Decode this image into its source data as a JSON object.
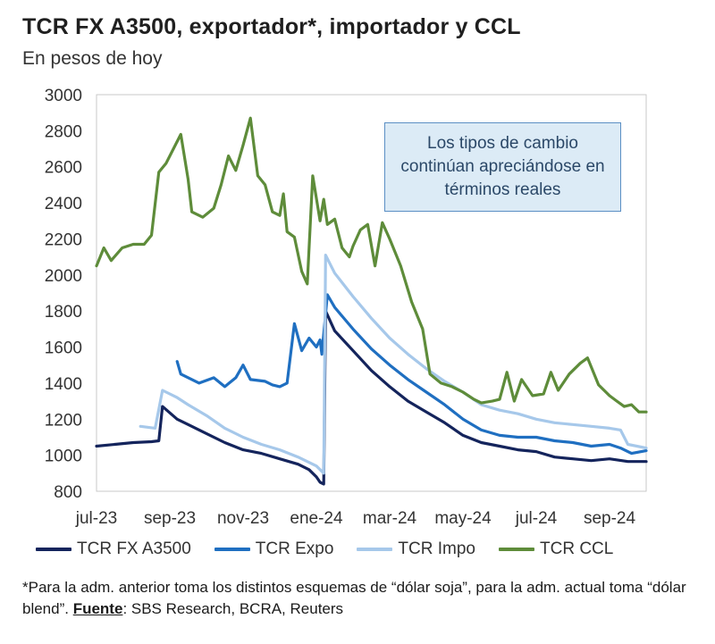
{
  "chart_data": {
    "type": "line",
    "title": "TCR FX A3500, exportador*, importador y CCL",
    "subtitle": "En pesos de hoy",
    "ylim": [
      800,
      3000
    ],
    "y_ticks": [
      800,
      1000,
      1200,
      1400,
      1600,
      1800,
      2000,
      2200,
      2400,
      2600,
      2800,
      3000
    ],
    "x_tick_labels": [
      "jul-23",
      "sep-23",
      "nov-23",
      "ene-24",
      "mar-24",
      "may-24",
      "jul-24",
      "sep-24"
    ],
    "x_range_months": [
      0,
      15
    ],
    "annotation": "Los tipos de cambio continúan apreciándose en términos reales",
    "series": [
      {
        "name": "TCR FX A3500",
        "color": "#14245c",
        "points": [
          [
            0,
            1050
          ],
          [
            0.5,
            1060
          ],
          [
            1,
            1070
          ],
          [
            1.5,
            1075
          ],
          [
            1.7,
            1080
          ],
          [
            1.8,
            1270
          ],
          [
            2.2,
            1200
          ],
          [
            2.5,
            1170
          ],
          [
            3,
            1120
          ],
          [
            3.5,
            1070
          ],
          [
            4,
            1030
          ],
          [
            4.5,
            1010
          ],
          [
            5,
            980
          ],
          [
            5.5,
            950
          ],
          [
            5.8,
            920
          ],
          [
            6,
            880
          ],
          [
            6.1,
            850
          ],
          [
            6.2,
            840
          ],
          [
            6.25,
            1800
          ],
          [
            6.5,
            1690
          ],
          [
            7,
            1580
          ],
          [
            7.5,
            1470
          ],
          [
            8,
            1380
          ],
          [
            8.5,
            1300
          ],
          [
            9,
            1240
          ],
          [
            9.5,
            1180
          ],
          [
            10,
            1110
          ],
          [
            10.5,
            1070
          ],
          [
            11,
            1050
          ],
          [
            11.5,
            1030
          ],
          [
            12,
            1020
          ],
          [
            12.5,
            990
          ],
          [
            13,
            980
          ],
          [
            13.5,
            970
          ],
          [
            14,
            980
          ],
          [
            14.5,
            965
          ],
          [
            15,
            965
          ]
        ]
      },
      {
        "name": "TCR Expo",
        "color": "#1f6fc1",
        "points": [
          [
            2.2,
            1520
          ],
          [
            2.3,
            1450
          ],
          [
            2.8,
            1400
          ],
          [
            3.2,
            1430
          ],
          [
            3.5,
            1380
          ],
          [
            3.8,
            1430
          ],
          [
            4,
            1500
          ],
          [
            4.2,
            1420
          ],
          [
            4.6,
            1410
          ],
          [
            4.8,
            1390
          ],
          [
            5,
            1380
          ],
          [
            5.2,
            1400
          ],
          [
            5.4,
            1730
          ],
          [
            5.6,
            1580
          ],
          [
            5.8,
            1650
          ],
          [
            6,
            1600
          ],
          [
            6.1,
            1640
          ],
          [
            6.15,
            1560
          ],
          [
            6.3,
            1890
          ],
          [
            6.5,
            1820
          ],
          [
            7,
            1700
          ],
          [
            7.5,
            1590
          ],
          [
            8,
            1500
          ],
          [
            8.5,
            1420
          ],
          [
            9,
            1350
          ],
          [
            9.5,
            1280
          ],
          [
            10,
            1200
          ],
          [
            10.5,
            1140
          ],
          [
            11,
            1110
          ],
          [
            11.5,
            1100
          ],
          [
            12,
            1100
          ],
          [
            12.5,
            1080
          ],
          [
            13,
            1070
          ],
          [
            13.5,
            1050
          ],
          [
            14,
            1060
          ],
          [
            14.3,
            1040
          ],
          [
            14.6,
            1010
          ],
          [
            15,
            1025
          ]
        ]
      },
      {
        "name": "TCR Impo",
        "color": "#a6c8ea",
        "points": [
          [
            1.2,
            1160
          ],
          [
            1.6,
            1150
          ],
          [
            1.8,
            1360
          ],
          [
            2.2,
            1320
          ],
          [
            2.5,
            1280
          ],
          [
            3,
            1220
          ],
          [
            3.5,
            1150
          ],
          [
            4,
            1100
          ],
          [
            4.5,
            1060
          ],
          [
            5,
            1030
          ],
          [
            5.5,
            990
          ],
          [
            6,
            940
          ],
          [
            6.2,
            900
          ],
          [
            6.25,
            2110
          ],
          [
            6.5,
            2010
          ],
          [
            7,
            1880
          ],
          [
            7.5,
            1760
          ],
          [
            8,
            1650
          ],
          [
            8.5,
            1560
          ],
          [
            9,
            1480
          ],
          [
            9.5,
            1410
          ],
          [
            10,
            1350
          ],
          [
            10.5,
            1280
          ],
          [
            11,
            1250
          ],
          [
            11.5,
            1230
          ],
          [
            12,
            1200
          ],
          [
            12.5,
            1180
          ],
          [
            13,
            1170
          ],
          [
            13.5,
            1160
          ],
          [
            14,
            1150
          ],
          [
            14.3,
            1140
          ],
          [
            14.5,
            1060
          ],
          [
            15,
            1040
          ]
        ]
      },
      {
        "name": "TCR CCL",
        "color": "#5e8c3a",
        "points": [
          [
            0,
            2050
          ],
          [
            0.2,
            2150
          ],
          [
            0.4,
            2080
          ],
          [
            0.7,
            2150
          ],
          [
            1,
            2170
          ],
          [
            1.3,
            2170
          ],
          [
            1.5,
            2220
          ],
          [
            1.7,
            2570
          ],
          [
            1.9,
            2620
          ],
          [
            2.1,
            2700
          ],
          [
            2.3,
            2780
          ],
          [
            2.5,
            2530
          ],
          [
            2.6,
            2350
          ],
          [
            2.9,
            2320
          ],
          [
            3.2,
            2370
          ],
          [
            3.4,
            2500
          ],
          [
            3.6,
            2660
          ],
          [
            3.8,
            2580
          ],
          [
            4,
            2720
          ],
          [
            4.2,
            2870
          ],
          [
            4.4,
            2550
          ],
          [
            4.6,
            2500
          ],
          [
            4.8,
            2350
          ],
          [
            5,
            2330
          ],
          [
            5.1,
            2450
          ],
          [
            5.2,
            2240
          ],
          [
            5.4,
            2210
          ],
          [
            5.6,
            2020
          ],
          [
            5.75,
            1950
          ],
          [
            5.9,
            2550
          ],
          [
            6.1,
            2300
          ],
          [
            6.2,
            2420
          ],
          [
            6.3,
            2280
          ],
          [
            6.5,
            2310
          ],
          [
            6.7,
            2150
          ],
          [
            6.9,
            2100
          ],
          [
            7,
            2160
          ],
          [
            7.2,
            2250
          ],
          [
            7.4,
            2280
          ],
          [
            7.6,
            2050
          ],
          [
            7.8,
            2290
          ],
          [
            8,
            2200
          ],
          [
            8.3,
            2050
          ],
          [
            8.6,
            1850
          ],
          [
            8.9,
            1700
          ],
          [
            9.1,
            1450
          ],
          [
            9.4,
            1400
          ],
          [
            9.7,
            1380
          ],
          [
            10,
            1350
          ],
          [
            10.3,
            1310
          ],
          [
            10.5,
            1290
          ],
          [
            10.8,
            1300
          ],
          [
            11,
            1310
          ],
          [
            11.2,
            1460
          ],
          [
            11.4,
            1300
          ],
          [
            11.6,
            1420
          ],
          [
            11.9,
            1330
          ],
          [
            12.2,
            1340
          ],
          [
            12.4,
            1460
          ],
          [
            12.6,
            1360
          ],
          [
            12.9,
            1450
          ],
          [
            13.2,
            1510
          ],
          [
            13.4,
            1540
          ],
          [
            13.7,
            1390
          ],
          [
            14,
            1330
          ],
          [
            14.2,
            1300
          ],
          [
            14.4,
            1270
          ],
          [
            14.6,
            1280
          ],
          [
            14.8,
            1240
          ],
          [
            15,
            1240
          ]
        ]
      }
    ]
  },
  "footnote": {
    "text1": "*Para la adm. anterior toma los distintos esquemas de “dólar soja”, para la adm. actual toma “dólar blend”. ",
    "source_label": "Fuente",
    "source_text": ": SBS Research, BCRA, Reuters"
  }
}
